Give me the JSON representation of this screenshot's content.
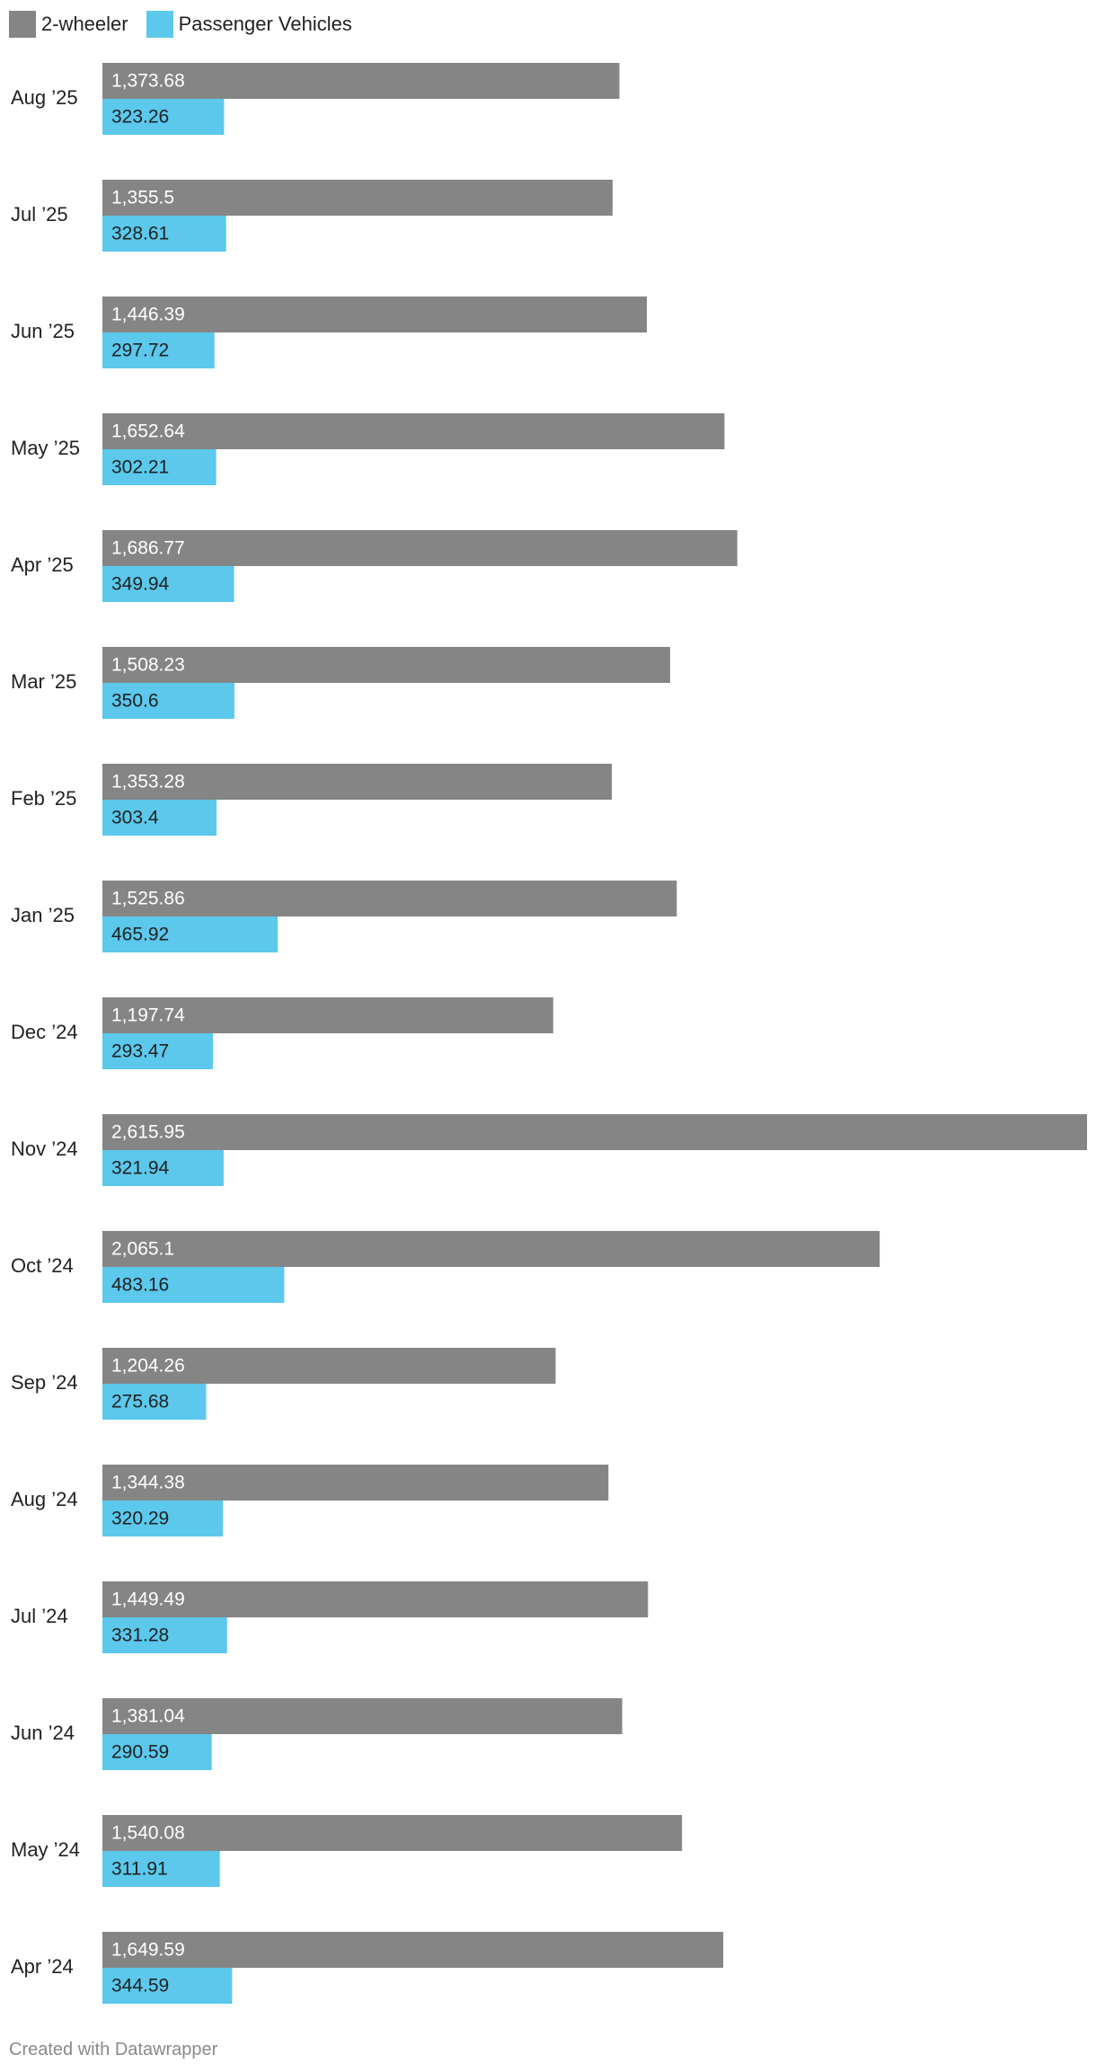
{
  "chart_data": {
    "type": "bar",
    "orientation": "horizontal",
    "categories": [
      "Aug ’25",
      "Jul ’25",
      "Jun ’25",
      "May ’25",
      "Apr ’25",
      "Mar ’25",
      "Feb ’25",
      "Jan ’25",
      "Dec ’24",
      "Nov ’24",
      "Oct ’24",
      "Sep ’24",
      "Aug ’24",
      "Jul ’24",
      "Jun ’24",
      "May ’24",
      "Apr ’24"
    ],
    "series": [
      {
        "name": "2-wheeler",
        "color": "#858585",
        "values": [
          1373.68,
          1355.5,
          1446.39,
          1652.64,
          1686.77,
          1508.23,
          1353.28,
          1525.86,
          1197.74,
          2615.95,
          2065.1,
          1204.26,
          1344.38,
          1449.49,
          1381.04,
          1540.08,
          1649.59
        ],
        "labels": [
          "1,373.68",
          "1,355.5",
          "1,446.39",
          "1,652.64",
          "1,686.77",
          "1,508.23",
          "1,353.28",
          "1,525.86",
          "1,197.74",
          "2,615.95",
          "2,065.1",
          "1,204.26",
          "1,344.38",
          "1,449.49",
          "1,381.04",
          "1,540.08",
          "1,649.59"
        ]
      },
      {
        "name": "Passenger Vehicles",
        "color": "#5bc8ec",
        "values": [
          323.26,
          328.61,
          297.72,
          302.21,
          349.94,
          350.6,
          303.4,
          465.92,
          293.47,
          321.94,
          483.16,
          275.68,
          320.29,
          331.28,
          290.59,
          311.91,
          344.59
        ],
        "labels": [
          "323.26",
          "328.61",
          "297.72",
          "302.21",
          "349.94",
          "350.6",
          "303.4",
          "465.92",
          "293.47",
          "321.94",
          "483.16",
          "275.68",
          "320.29",
          "331.28",
          "290.59",
          "311.91",
          "344.59"
        ]
      }
    ],
    "xlim": [
      0,
      2615.95
    ],
    "grid": false,
    "legend_position": "top-left",
    "title": "",
    "xlabel": "",
    "ylabel": ""
  },
  "footer": {
    "credit": "Created with Datawrapper"
  }
}
